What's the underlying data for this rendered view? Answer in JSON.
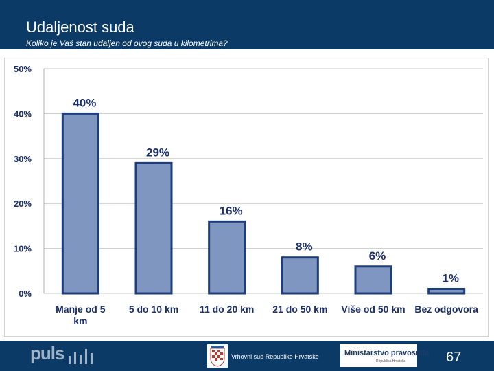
{
  "header": {
    "title": "Udaljenost suda",
    "subtitle": "Koliko je Vaš stan udaljen od ovog suda u kilometrima?"
  },
  "footer": {
    "logo_text": "puls",
    "court_name": "Vrhovni sud Republike Hrvatske",
    "ministry_name": "Ministarstvo pravosuđa",
    "ministry_small": "Republika Hrvatska",
    "page_number": "67"
  },
  "chart_data": {
    "type": "bar",
    "title": "",
    "xlabel": "",
    "ylabel": "",
    "categories": [
      [
        "Manje od 5",
        "km"
      ],
      [
        "5 do 10 km"
      ],
      [
        "11 do 20 km"
      ],
      [
        "21 do 50 km"
      ],
      [
        "Više od 50 km"
      ],
      [
        "Bez odgovora"
      ]
    ],
    "values": [
      40,
      29,
      16,
      8,
      6,
      1
    ],
    "data_labels": [
      "40%",
      "29%",
      "16%",
      "8%",
      "6%",
      "1%"
    ],
    "y_ticks": [
      "0%",
      "10%",
      "20%",
      "30%",
      "40%",
      "50%"
    ],
    "y_tick_values": [
      0,
      10,
      20,
      30,
      40,
      50
    ],
    "ylim": [
      0,
      50
    ],
    "grid": true,
    "legend": "none",
    "colors": {
      "bar": "#7f96c0",
      "bar_edge": "#1f3d7a",
      "grid": "#c8c8c8",
      "text": "#1a2f6b"
    }
  }
}
